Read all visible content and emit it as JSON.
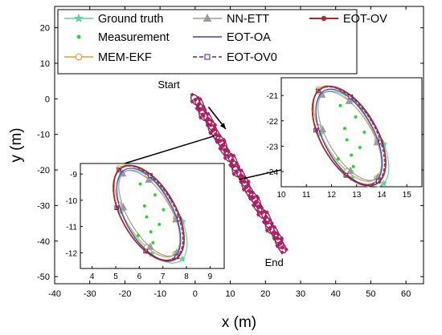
{
  "chart_data": {
    "type": "line",
    "xlabel": "x (m)",
    "ylabel": "y (m)",
    "xlim": [
      -40,
      65
    ],
    "ylim": [
      -52,
      26
    ],
    "xticks": [
      -40,
      -30,
      -20,
      -10,
      0,
      10,
      20,
      30,
      40,
      50,
      60
    ],
    "yticks": [
      -50,
      -40,
      -30,
      -20,
      -10,
      0,
      10,
      20
    ],
    "grid": false,
    "legend_placement": "top",
    "series": [
      {
        "name": "Ground truth",
        "color": "#5fd3a2",
        "marker": "star"
      },
      {
        "name": "Measurement",
        "color": "#29d62a",
        "marker": "dot"
      },
      {
        "name": "MEM-EKF",
        "color": "#d9a13b",
        "marker": "circle"
      },
      {
        "name": "NN-ETT",
        "color": "#9b9b9b",
        "marker": "triangle"
      },
      {
        "name": "EOT-OA",
        "color": "#3d3dc9",
        "marker": "none"
      },
      {
        "name": "EOT-OV0",
        "color": "#5a2a8a",
        "marker": "square",
        "dashed": true
      },
      {
        "name": "EOT-OV",
        "color": "#a82b2b",
        "marker": "dot"
      }
    ],
    "trajectory": {
      "start": [
        0,
        0
      ],
      "end": [
        25,
        -42
      ]
    },
    "annotations": [
      {
        "text": "Start",
        "x": -7.5,
        "y": 3
      },
      {
        "text": "End",
        "x": 22.5,
        "y": -47
      }
    ],
    "insets": [
      {
        "position": "bottom-left",
        "xlim": [
          3.5,
          9.6
        ],
        "ylim": [
          -12.6,
          -8.6
        ],
        "xticks": [
          4,
          5,
          6,
          7,
          8,
          9
        ],
        "yticks": [
          -9,
          -10,
          -11,
          -12
        ],
        "center": [
          6.4,
          -10.5
        ],
        "source_point": [
          5.6,
          -10.4
        ]
      },
      {
        "position": "top-right",
        "xlim": [
          10,
          15.6
        ],
        "ylim": [
          -24.6,
          -20.3
        ],
        "xticks": [
          10,
          11,
          12,
          13,
          14,
          15
        ],
        "yticks": [
          -21,
          -22,
          -23,
          -24
        ],
        "center": [
          12.7,
          -22.6
        ],
        "source_point": [
          12.5,
          -22.7
        ]
      }
    ]
  }
}
